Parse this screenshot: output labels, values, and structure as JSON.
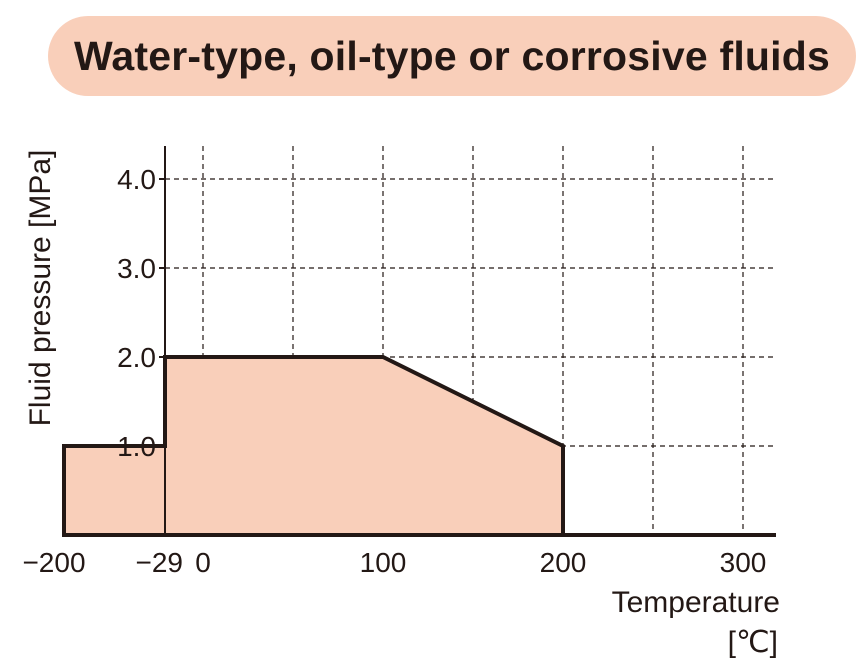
{
  "chart_data": {
    "type": "area",
    "title": "Water-type, oil-type or corrosive fluids",
    "xlabel": "Temperature",
    "xunit": "[℃]",
    "ylabel": "Fluid pressure [MPa]",
    "x_ticks": [
      {
        "value": -200,
        "label": "−200"
      },
      {
        "value": -29,
        "label": "−29"
      },
      {
        "value": 0,
        "label": "0"
      },
      {
        "value": 100,
        "label": "100"
      },
      {
        "value": 200,
        "label": "200"
      },
      {
        "value": 300,
        "label": "300"
      }
    ],
    "y_ticks": [
      {
        "value": 1.0,
        "label": "1.0"
      },
      {
        "value": 2.0,
        "label": "2.0"
      },
      {
        "value": 3.0,
        "label": "3.0"
      },
      {
        "value": 4.0,
        "label": "4.0"
      }
    ],
    "x_gridlines": [
      0,
      50,
      100,
      150,
      200,
      250,
      300
    ],
    "y_gridlines": [
      1.0,
      2.0,
      3.0,
      4.0
    ],
    "ylim": [
      0,
      4.4
    ],
    "grid": true,
    "fill_color": "#f9cfba",
    "line_color": "#231815",
    "boundary": [
      {
        "x": -200,
        "y": 0
      },
      {
        "x": -200,
        "y": 1.0
      },
      {
        "x": -29,
        "y": 1.0
      },
      {
        "x": -29,
        "y": 2.0
      },
      {
        "x": 100,
        "y": 2.0
      },
      {
        "x": 200,
        "y": 1.0
      },
      {
        "x": 200,
        "y": 0
      }
    ]
  }
}
